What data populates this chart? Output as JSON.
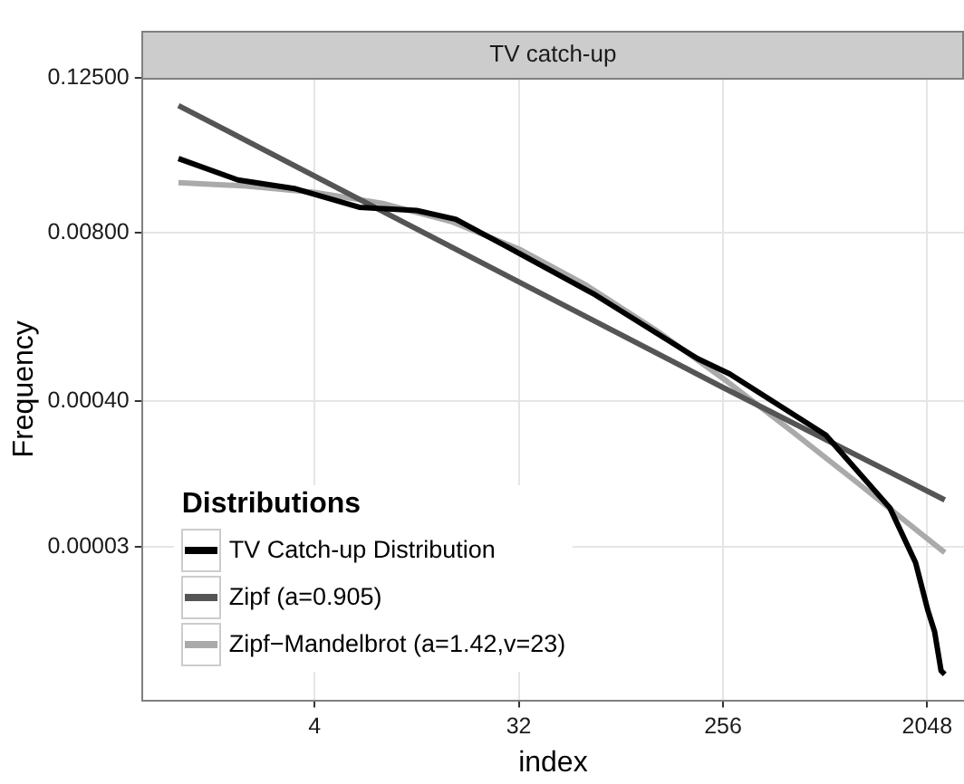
{
  "chart_data": {
    "type": "line",
    "title": "TV catch-up",
    "xlabel": "index",
    "ylabel": "Frequency",
    "legend_title": "Distributions",
    "log": "xy",
    "grid": true,
    "legend": "bottom left",
    "marker": "none",
    "line_style": "solid",
    "xlim": [
      0.69,
      2980
    ],
    "xticks": [
      4,
      32,
      256,
      2048
    ],
    "ylim": [
      1.95e-06,
      0.126
    ],
    "yticks": [
      {
        "value": 0.125,
        "label": "0.12500"
      },
      {
        "value": 0.008,
        "label": "0.00800"
      },
      {
        "value": 0.0004,
        "label": "0.00040"
      },
      {
        "value": 3e-05,
        "label": "0.00003"
      }
    ],
    "series": [
      {
        "name": "TV Catch-up Distribution",
        "color": "#000000",
        "x": [
          1,
          1.83,
          3.3,
          6.3,
          11.3,
          16.8,
          28.3,
          70,
          198,
          274,
          729,
          1400,
          1820,
          2065,
          2210,
          2360,
          2450
        ],
        "values": [
          0.03,
          0.0205,
          0.0175,
          0.0126,
          0.0119,
          0.0102,
          0.00625,
          0.00264,
          0.00085,
          0.00065,
          0.000219,
          6e-05,
          2.26e-05,
          9.6e-06,
          6.6e-06,
          3.3e-06,
          3.1e-06
        ]
      },
      {
        "name": "Zipf (a=0.905)",
        "color": "#555555",
        "x": [
          1,
          32,
          256,
          2450
        ],
        "values": [
          0.0769,
          0.00334,
          0.00051,
          6.9e-05
        ]
      },
      {
        "name": "Zipf−Mandelbrot (a=1.42,v=23)",
        "color": "#aaaaaa",
        "x": [
          1,
          2,
          4,
          8,
          16,
          32,
          64,
          128,
          256,
          512,
          1024,
          2048,
          2450
        ],
        "values": [
          0.0195,
          0.0184,
          0.0164,
          0.0135,
          0.0098,
          0.006,
          0.00313,
          0.00143,
          0.0006,
          0.000237,
          9.14e-05,
          3.47e-05,
          2.7e-05
        ]
      }
    ]
  }
}
